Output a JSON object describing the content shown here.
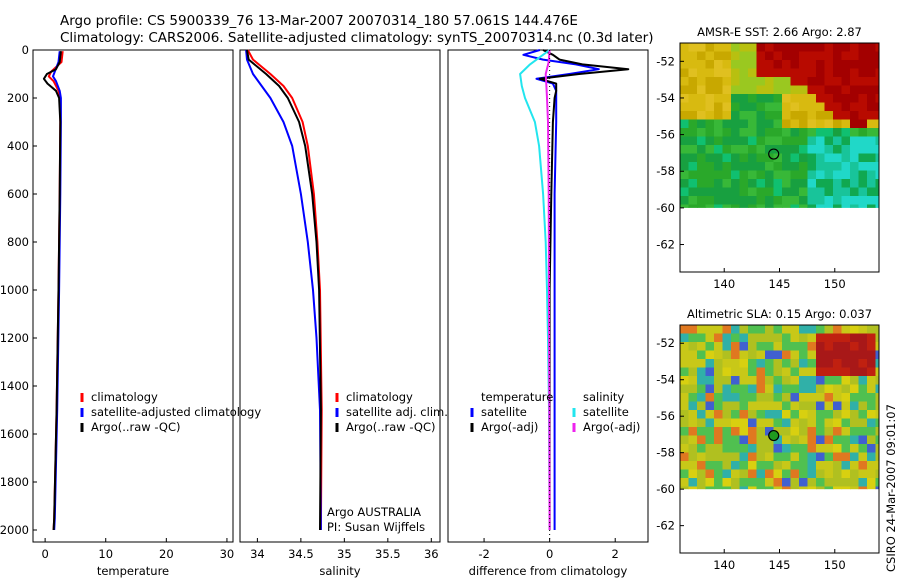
{
  "header": {
    "line1": "Argo profile: CS 5900339_76 13-Mar-2007 20070314_180 57.061S 144.476E",
    "line2": "Climatology: CARS2006. Satellite-adjusted climatology: synTS_20070314.nc (0.3d later)"
  },
  "credit": "CSIRO 24-Mar-2007 09:01:07",
  "colors": {
    "climatology": "#ff0000",
    "satellite": "#0000ff",
    "argo": "#000000",
    "salinity_satellite": "#22e5ee",
    "salinity_argo": "#ee22ee"
  },
  "chart_data": [
    {
      "type": "line",
      "title": "",
      "xlabel": "temperature",
      "ylabel": "",
      "xlim": [
        -2,
        31
      ],
      "ylim": [
        2050,
        0
      ],
      "xticks": [
        "0",
        "10",
        "20",
        "30"
      ],
      "yticks": [
        "0",
        "200",
        "400",
        "600",
        "800",
        "1000",
        "1200",
        "1400",
        "1600",
        "1800",
        "2000"
      ],
      "legend": [
        "climatology",
        "satellite-adjusted climatology",
        "Argo(..raw -QC)"
      ],
      "series": [
        {
          "name": "climatology",
          "depth": [
            5,
            50,
            90,
            110,
            130,
            170,
            200,
            300,
            600,
            1000,
            1500,
            1950,
            2000
          ],
          "values": [
            2.9,
            2.7,
            1.0,
            0.6,
            1.4,
            2.2,
            2.5,
            2.5,
            2.4,
            2.2,
            1.9,
            1.5,
            1.4
          ]
        },
        {
          "name": "satellite-adjusted climatology",
          "depth": [
            5,
            50,
            90,
            110,
            130,
            170,
            200,
            300,
            600,
            1000,
            1500,
            1950,
            2000
          ],
          "values": [
            2.4,
            2.2,
            1.6,
            1.3,
            1.8,
            2.4,
            2.6,
            2.6,
            2.5,
            2.3,
            2.0,
            1.6,
            1.5
          ]
        },
        {
          "name": "Argo(..raw -QC)",
          "depth": [
            5,
            50,
            80,
            100,
            120,
            140,
            170,
            200,
            300,
            600,
            1000,
            1500,
            1950,
            2000
          ],
          "values": [
            2.6,
            2.4,
            1.8,
            0.3,
            -0.2,
            0.4,
            1.8,
            2.3,
            2.5,
            2.4,
            2.2,
            1.9,
            1.5,
            1.4
          ]
        }
      ]
    },
    {
      "type": "line",
      "title": "",
      "xlabel": "salinity",
      "xlim": [
        33.8,
        36.1
      ],
      "ylim": [
        2050,
        0
      ],
      "xticks": [
        "34",
        "34.5",
        "35",
        "35.5",
        "36"
      ],
      "legend": [
        "climatology",
        "satellite adj. clim.",
        "Argo(..raw -QC)"
      ],
      "annotation": [
        "Argo AUSTRALIA",
        "PI: Susan Wijffels"
      ],
      "series": [
        {
          "name": "climatology",
          "depth": [
            0,
            40,
            100,
            150,
            200,
            300,
            400,
            600,
            800,
            1000,
            1500,
            2000
          ],
          "values": [
            33.89,
            33.95,
            34.15,
            34.3,
            34.4,
            34.52,
            34.58,
            34.65,
            34.69,
            34.72,
            34.74,
            34.73
          ]
        },
        {
          "name": "satellite adj. clim.",
          "depth": [
            0,
            40,
            100,
            150,
            200,
            300,
            400,
            600,
            800,
            1000,
            1200,
            1500,
            2000
          ],
          "values": [
            33.87,
            33.88,
            33.95,
            34.05,
            34.15,
            34.3,
            34.4,
            34.5,
            34.58,
            34.64,
            34.68,
            34.72,
            34.73
          ]
        },
        {
          "name": "Argo(..raw -QC)",
          "depth": [
            0,
            40,
            100,
            150,
            200,
            300,
            400,
            600,
            800,
            1000,
            1500,
            2000
          ],
          "values": [
            33.88,
            33.9,
            34.1,
            34.25,
            34.35,
            34.48,
            34.55,
            34.63,
            34.68,
            34.71,
            34.73,
            34.72
          ]
        }
      ]
    },
    {
      "type": "line",
      "title": "",
      "xlabel": "difference from climatology",
      "xlim": [
        -3.1,
        3.0
      ],
      "ylim": [
        2050,
        0
      ],
      "xticks": [
        "-2",
        "0",
        "2"
      ],
      "legend": [
        {
          "group": "temperature",
          "items": [
            "satellite",
            "Argo(-adj)"
          ]
        },
        {
          "group": "salinity",
          "items": [
            "satellite",
            "Argo(-adj)"
          ]
        }
      ],
      "series": [
        {
          "name": "temperature satellite",
          "depth": [
            0,
            20,
            40,
            60,
            80,
            100,
            120,
            140,
            170,
            200,
            300,
            600,
            1000,
            1500,
            2000
          ],
          "values": [
            -0.3,
            -0.8,
            -0.2,
            0.8,
            1.5,
            0.6,
            -0.4,
            0.1,
            0.2,
            0.2,
            0.2,
            0.15,
            0.15,
            0.15,
            0.15
          ]
        },
        {
          "name": "temperature Argo(-adj)",
          "depth": [
            0,
            20,
            40,
            60,
            80,
            100,
            120,
            140,
            170,
            200,
            300,
            600,
            1000,
            1500,
            2000
          ],
          "values": [
            -0.2,
            0.1,
            0.3,
            1.0,
            2.4,
            0.9,
            -0.3,
            0.2,
            0.2,
            0.15,
            0.1,
            0.05,
            0.0,
            0.0,
            0.0
          ]
        },
        {
          "name": "salinity satellite",
          "depth": [
            0,
            30,
            60,
            100,
            150,
            200,
            300,
            400,
            600,
            800,
            1000,
            1200,
            1500,
            2000
          ],
          "values": [
            0.0,
            -0.3,
            -0.6,
            -0.9,
            -0.85,
            -0.75,
            -0.45,
            -0.32,
            -0.2,
            -0.12,
            -0.08,
            -0.05,
            -0.02,
            0.0
          ]
        },
        {
          "name": "salinity Argo(-adj)",
          "depth": [
            0,
            50,
            100,
            150,
            200,
            300,
            600,
            1000,
            1500,
            2000
          ],
          "values": [
            0.0,
            -0.03,
            -0.12,
            -0.1,
            -0.08,
            -0.05,
            -0.03,
            -0.02,
            -0.01,
            0.0
          ]
        }
      ]
    },
    {
      "type": "heatmap",
      "title": "AMSR-E SST: 2.66 Argo: 2.87",
      "xlim": [
        136,
        154
      ],
      "ylim": [
        -63.5,
        -51
      ],
      "xticks": [
        "140",
        "145",
        "150"
      ],
      "yticks": [
        "-52",
        "-54",
        "-56",
        "-58",
        "-60",
        "-62"
      ],
      "data_extent_lat": [
        -60,
        -51
      ],
      "marker": {
        "lon": 144.476,
        "lat": -57.061
      }
    },
    {
      "type": "heatmap",
      "title": "Altimetric SLA: 0.15 Argo: 0.037",
      "xlim": [
        136,
        154
      ],
      "ylim": [
        -63.5,
        -51
      ],
      "xticks": [
        "140",
        "145",
        "150"
      ],
      "yticks": [
        "-52",
        "-54",
        "-56",
        "-58",
        "-60",
        "-62"
      ],
      "data_extent_lat": [
        -60,
        -51
      ],
      "marker": {
        "lon": 144.476,
        "lat": -57.061
      }
    }
  ]
}
